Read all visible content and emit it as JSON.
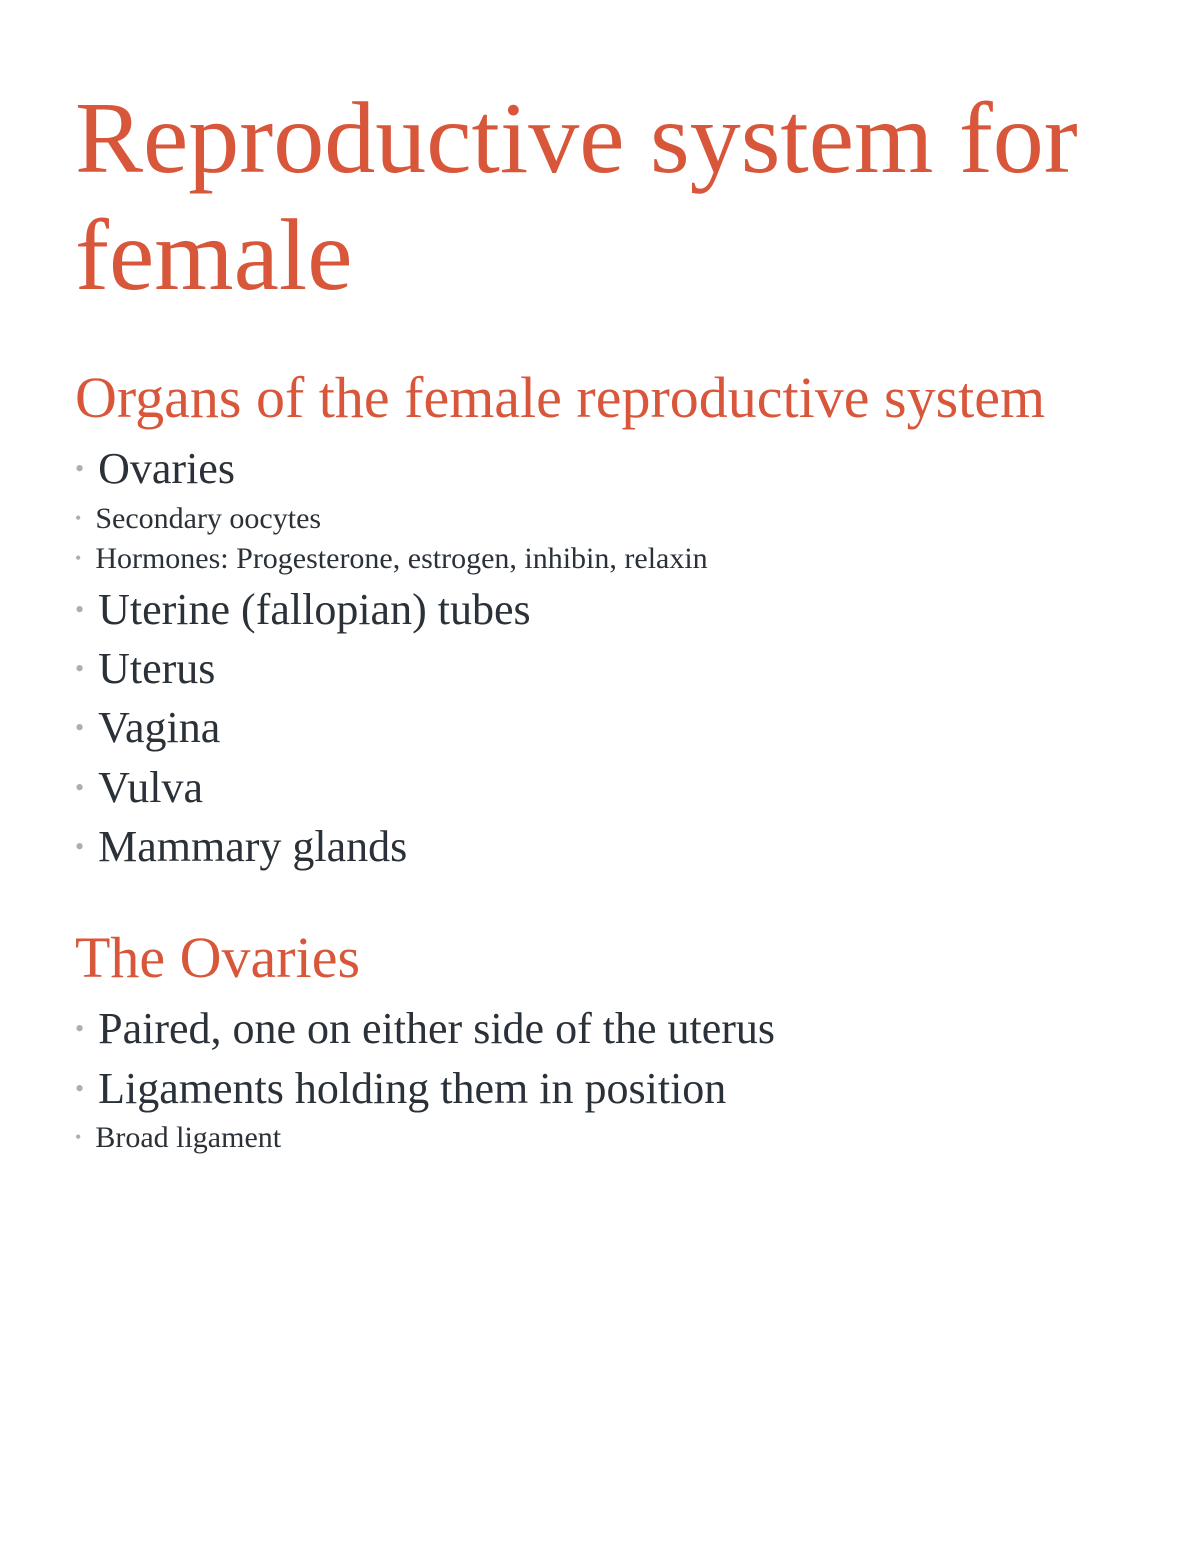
{
  "colors": {
    "accent": "#d8573a",
    "body_text": "#2a3138",
    "bullet": "#a9b0b3",
    "background": "#ffffff"
  },
  "typography": {
    "title_fontsize": 102,
    "heading_fontsize": 58,
    "item_large_fontsize": 44,
    "item_small_fontsize": 30,
    "font_family": "serif"
  },
  "title": "Reproductive system for female",
  "sections": [
    {
      "heading": "Organs of the female reproductive system",
      "items": [
        {
          "text": "Ovaries",
          "size": "large"
        },
        {
          "text": "Secondary oocytes",
          "size": "small"
        },
        {
          "text": "Hormones: Progesterone, estrogen, inhibin, relaxin",
          "size": "small"
        },
        {
          "text": "Uterine (fallopian) tubes",
          "size": "large"
        },
        {
          "text": "Uterus",
          "size": "large"
        },
        {
          "text": "Vagina",
          "size": "large"
        },
        {
          "text": "Vulva",
          "size": "large"
        },
        {
          "text": "Mammary glands",
          "size": "large"
        }
      ]
    },
    {
      "heading": "The Ovaries",
      "items": [
        {
          "text": "Paired, one on either side of the uterus",
          "size": "large"
        },
        {
          "text": "Ligaments holding them in position",
          "size": "large"
        },
        {
          "text": "Broad ligament",
          "size": "small_alt"
        }
      ]
    }
  ]
}
